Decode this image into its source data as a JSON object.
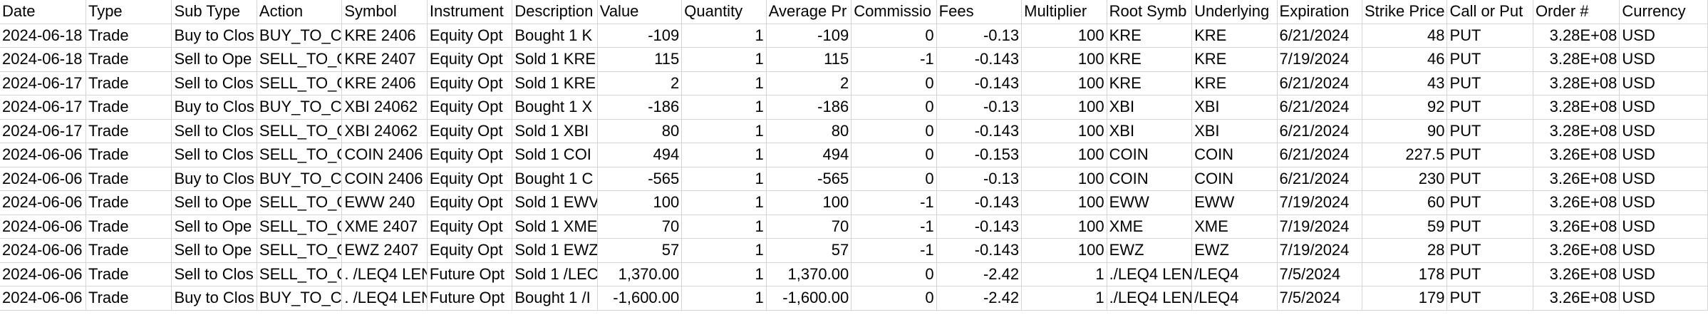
{
  "sheet": {
    "headers": [
      "Date",
      "Type",
      "Sub Type",
      "Action",
      "Symbol",
      "Instrument",
      "Description",
      "Value",
      "Quantity",
      "Average Pr",
      "Commissio",
      "Fees",
      "Multiplier",
      "Root Symb",
      "Underlying",
      "Expiration",
      "Strike Price",
      "Call or Put",
      "Order #",
      "Currency"
    ],
    "rows": [
      [
        "2024-06-18",
        "Trade",
        "Buy to Clos",
        "BUY_TO_C",
        "KRE   2406",
        "Equity Opt",
        "Bought 1 K",
        "-109",
        "1",
        "-109",
        "0",
        "-0.13",
        "100",
        "KRE",
        "KRE",
        "6/21/2024",
        "48",
        "PUT",
        "3.28E+08",
        "USD"
      ],
      [
        "2024-06-18",
        "Trade",
        "Sell to Ope",
        "SELL_TO_C",
        "KRE   2407",
        "Equity Opt",
        "Sold 1 KRE",
        "115",
        "1",
        "115",
        "-1",
        "-0.143",
        "100",
        "KRE",
        "KRE",
        "7/19/2024",
        "46",
        "PUT",
        "3.28E+08",
        "USD"
      ],
      [
        "2024-06-17",
        "Trade",
        "Sell to Clos",
        "SELL_TO_C",
        "KRE   2406",
        "Equity Opt",
        "Sold 1 KRE",
        "2",
        "1",
        "2",
        "0",
        "-0.143",
        "100",
        "KRE",
        "KRE",
        "6/21/2024",
        "43",
        "PUT",
        "3.28E+08",
        "USD"
      ],
      [
        "2024-06-17",
        "Trade",
        "Buy to Clos",
        "BUY_TO_C",
        "XBI   24062",
        "Equity Opt",
        "Bought 1 X",
        "-186",
        "1",
        "-186",
        "0",
        "-0.13",
        "100",
        "XBI",
        "XBI",
        "6/21/2024",
        "92",
        "PUT",
        "3.28E+08",
        "USD"
      ],
      [
        "2024-06-17",
        "Trade",
        "Sell to Clos",
        "SELL_TO_C",
        "XBI   24062",
        "Equity Opt",
        "Sold 1 XBI",
        "80",
        "1",
        "80",
        "0",
        "-0.143",
        "100",
        "XBI",
        "XBI",
        "6/21/2024",
        "90",
        "PUT",
        "3.28E+08",
        "USD"
      ],
      [
        "2024-06-06",
        "Trade",
        "Sell to Clos",
        "SELL_TO_C",
        "COIN  2406",
        "Equity Opt",
        "Sold 1 COI",
        "494",
        "1",
        "494",
        "0",
        "-0.153",
        "100",
        "COIN",
        "COIN",
        "6/21/2024",
        "227.5",
        "PUT",
        "3.26E+08",
        "USD"
      ],
      [
        "2024-06-06",
        "Trade",
        "Buy to Clos",
        "BUY_TO_C",
        "COIN  2406",
        "Equity Opt",
        "Bought 1 C",
        "-565",
        "1",
        "-565",
        "0",
        "-0.13",
        "100",
        "COIN",
        "COIN",
        "6/21/2024",
        "230",
        "PUT",
        "3.26E+08",
        "USD"
      ],
      [
        "2024-06-06",
        "Trade",
        "Sell to Ope",
        "SELL_TO_C",
        "EWW   240",
        "Equity Opt",
        "Sold 1 EWV",
        "100",
        "1",
        "100",
        "-1",
        "-0.143",
        "100",
        "EWW",
        "EWW",
        "7/19/2024",
        "60",
        "PUT",
        "3.26E+08",
        "USD"
      ],
      [
        "2024-06-06",
        "Trade",
        "Sell to Ope",
        "SELL_TO_C",
        "XME   2407",
        "Equity Opt",
        "Sold 1 XME",
        "70",
        "1",
        "70",
        "-1",
        "-0.143",
        "100",
        "XME",
        "XME",
        "7/19/2024",
        "59",
        "PUT",
        "3.26E+08",
        "USD"
      ],
      [
        "2024-06-06",
        "Trade",
        "Sell to Ope",
        "SELL_TO_C",
        "EWZ   2407",
        "Equity Opt",
        "Sold 1 EWZ",
        "57",
        "1",
        "57",
        "-1",
        "-0.143",
        "100",
        "EWZ",
        "EWZ",
        "7/19/2024",
        "28",
        "PUT",
        "3.26E+08",
        "USD"
      ],
      [
        "2024-06-06",
        "Trade",
        "Sell to Clos",
        "SELL_TO_C",
        ". /LEQ4 LEN",
        "Future Opt",
        "Sold 1 /LEC",
        "1,370.00",
        "1",
        "1,370.00",
        "0",
        "-2.42",
        "1",
        "./LEQ4 LEN",
        "/LEQ4",
        "7/5/2024",
        "178",
        "PUT",
        "3.26E+08",
        "USD"
      ],
      [
        "2024-06-06",
        "Trade",
        "Buy to Clos",
        "BUY_TO_C",
        ". /LEQ4 LEN",
        "Future Opt",
        "Bought 1 /I",
        "-1,600.00",
        "1",
        "-1,600.00",
        "0",
        "-2.42",
        "1",
        "./LEQ4 LEN",
        "/LEQ4",
        "7/5/2024",
        "179",
        "PUT",
        "3.26E+08",
        "USD"
      ]
    ]
  }
}
